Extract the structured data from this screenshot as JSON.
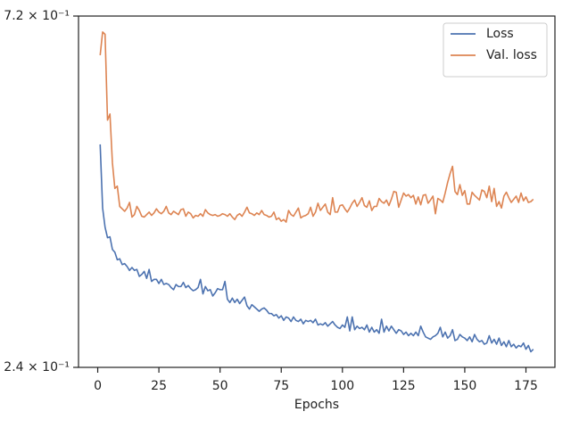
{
  "chart_data": {
    "type": "line",
    "xlabel": "Epochs",
    "log_y": true,
    "grid": false,
    "legend": "upper right",
    "xlim": [
      -7.85,
      186.85
    ],
    "xticks": [
      0,
      25,
      50,
      75,
      100,
      125,
      150,
      175
    ],
    "ylim": [
      0.24,
      0.72
    ],
    "yticks": [
      {
        "value": 0.72,
        "label": "7.2 × 10⁻¹"
      },
      {
        "value": 0.24,
        "label": "2.4 × 10⁻¹"
      }
    ],
    "x": [
      1,
      2,
      3,
      4,
      5,
      6,
      7,
      8,
      9,
      10,
      11,
      12,
      13,
      14,
      15,
      16,
      17,
      18,
      19,
      20,
      21,
      22,
      23,
      24,
      25,
      26,
      27,
      28,
      29,
      30,
      31,
      32,
      33,
      34,
      35,
      36,
      37,
      38,
      39,
      40,
      41,
      42,
      43,
      44,
      45,
      46,
      47,
      48,
      49,
      50,
      51,
      52,
      53,
      54,
      55,
      56,
      57,
      58,
      59,
      60,
      61,
      62,
      63,
      64,
      65,
      66,
      67,
      68,
      69,
      70,
      71,
      72,
      73,
      74,
      75,
      76,
      77,
      78,
      79,
      80,
      81,
      82,
      83,
      84,
      85,
      86,
      87,
      88,
      89,
      90,
      91,
      92,
      93,
      94,
      95,
      96,
      97,
      98,
      99,
      100,
      101,
      102,
      103,
      104,
      105,
      106,
      107,
      108,
      109,
      110,
      111,
      112,
      113,
      114,
      115,
      116,
      117,
      118,
      119,
      120,
      121,
      122,
      123,
      124,
      125,
      126,
      127,
      128,
      129,
      130,
      131,
      132,
      133,
      134,
      135,
      136,
      137,
      138,
      139,
      140,
      141,
      142,
      143,
      144,
      145,
      146,
      147,
      148,
      149,
      150,
      151,
      152,
      153,
      154,
      155,
      156,
      157,
      158,
      159,
      160,
      161,
      162,
      163,
      164,
      165,
      166,
      167,
      168,
      169,
      170,
      171,
      172,
      173,
      174,
      175,
      176,
      177,
      178
    ],
    "series": [
      {
        "name": "Loss",
        "color": "#4c72b0",
        "values": [
          0.482,
          0.395,
          0.372,
          0.36,
          0.361,
          0.347,
          0.344,
          0.336,
          0.337,
          0.331,
          0.332,
          0.329,
          0.325,
          0.328,
          0.325,
          0.326,
          0.319,
          0.321,
          0.324,
          0.317,
          0.326,
          0.314,
          0.316,
          0.316,
          0.312,
          0.316,
          0.311,
          0.312,
          0.311,
          0.308,
          0.306,
          0.311,
          0.309,
          0.309,
          0.313,
          0.308,
          0.31,
          0.307,
          0.305,
          0.306,
          0.308,
          0.316,
          0.302,
          0.309,
          0.305,
          0.306,
          0.3,
          0.303,
          0.307,
          0.306,
          0.306,
          0.314,
          0.297,
          0.294,
          0.298,
          0.294,
          0.297,
          0.293,
          0.296,
          0.299,
          0.291,
          0.288,
          0.292,
          0.29,
          0.288,
          0.286,
          0.288,
          0.289,
          0.287,
          0.284,
          0.284,
          0.282,
          0.283,
          0.28,
          0.282,
          0.278,
          0.281,
          0.28,
          0.277,
          0.281,
          0.278,
          0.277,
          0.279,
          0.275,
          0.278,
          0.277,
          0.278,
          0.276,
          0.279,
          0.274,
          0.275,
          0.274,
          0.276,
          0.273,
          0.275,
          0.277,
          0.274,
          0.272,
          0.271,
          0.274,
          0.272,
          0.281,
          0.269,
          0.281,
          0.27,
          0.273,
          0.271,
          0.272,
          0.27,
          0.274,
          0.268,
          0.272,
          0.268,
          0.27,
          0.267,
          0.279,
          0.268,
          0.273,
          0.269,
          0.273,
          0.27,
          0.267,
          0.27,
          0.269,
          0.266,
          0.268,
          0.265,
          0.267,
          0.265,
          0.268,
          0.265,
          0.273,
          0.268,
          0.264,
          0.263,
          0.262,
          0.264,
          0.265,
          0.267,
          0.272,
          0.264,
          0.268,
          0.263,
          0.265,
          0.27,
          0.261,
          0.262,
          0.266,
          0.264,
          0.263,
          0.261,
          0.264,
          0.26,
          0.266,
          0.262,
          0.26,
          0.261,
          0.258,
          0.259,
          0.265,
          0.259,
          0.262,
          0.258,
          0.263,
          0.257,
          0.26,
          0.256,
          0.261,
          0.256,
          0.258,
          0.255,
          0.257,
          0.256,
          0.259,
          0.254,
          0.257,
          0.252,
          0.254
        ]
      },
      {
        "name": "Val. loss",
        "color": "#dd8452",
        "values": [
          0.637,
          0.685,
          0.68,
          0.52,
          0.53,
          0.455,
          0.42,
          0.423,
          0.397,
          0.394,
          0.391,
          0.395,
          0.402,
          0.384,
          0.387,
          0.397,
          0.392,
          0.385,
          0.384,
          0.387,
          0.39,
          0.386,
          0.389,
          0.394,
          0.39,
          0.388,
          0.391,
          0.397,
          0.389,
          0.387,
          0.391,
          0.389,
          0.387,
          0.393,
          0.394,
          0.385,
          0.39,
          0.388,
          0.383,
          0.386,
          0.385,
          0.388,
          0.385,
          0.393,
          0.389,
          0.387,
          0.386,
          0.387,
          0.385,
          0.386,
          0.388,
          0.387,
          0.385,
          0.388,
          0.384,
          0.381,
          0.386,
          0.388,
          0.385,
          0.39,
          0.396,
          0.389,
          0.388,
          0.386,
          0.389,
          0.387,
          0.392,
          0.387,
          0.386,
          0.384,
          0.385,
          0.39,
          0.381,
          0.383,
          0.379,
          0.381,
          0.378,
          0.392,
          0.387,
          0.385,
          0.39,
          0.395,
          0.383,
          0.385,
          0.386,
          0.388,
          0.396,
          0.385,
          0.39,
          0.401,
          0.392,
          0.396,
          0.4,
          0.39,
          0.387,
          0.408,
          0.39,
          0.39,
          0.398,
          0.399,
          0.394,
          0.39,
          0.395,
          0.401,
          0.405,
          0.397,
          0.402,
          0.408,
          0.398,
          0.396,
          0.404,
          0.392,
          0.397,
          0.397,
          0.407,
          0.403,
          0.401,
          0.405,
          0.398,
          0.406,
          0.416,
          0.415,
          0.396,
          0.405,
          0.414,
          0.41,
          0.412,
          0.408,
          0.411,
          0.4,
          0.409,
          0.399,
          0.411,
          0.412,
          0.401,
          0.405,
          0.41,
          0.388,
          0.407,
          0.405,
          0.402,
          0.414,
          0.428,
          0.44,
          0.45,
          0.416,
          0.412,
          0.425,
          0.411,
          0.417,
          0.4,
          0.4,
          0.415,
          0.411,
          0.408,
          0.405,
          0.418,
          0.416,
          0.408,
          0.423,
          0.403,
          0.42,
          0.397,
          0.403,
          0.395,
          0.41,
          0.415,
          0.408,
          0.402,
          0.406,
          0.41,
          0.402,
          0.414,
          0.404,
          0.409,
          0.402,
          0.403,
          0.406
        ]
      }
    ]
  }
}
